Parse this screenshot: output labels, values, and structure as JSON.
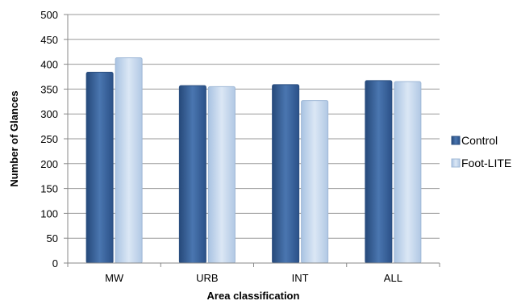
{
  "chart_data": {
    "type": "bar",
    "categories": [
      "MW",
      "URB",
      "INT",
      "ALL"
    ],
    "series": [
      {
        "name": "Control",
        "values": [
          384,
          357,
          359,
          367
        ],
        "color": "#3d67a0"
      },
      {
        "name": "Foot-LITE",
        "values": [
          413,
          355,
          327,
          365
        ],
        "color": "#bdd1ea"
      }
    ],
    "xlabel": "Area classification",
    "ylabel": "Number of Glances",
    "ylim": [
      0,
      500
    ],
    "yticks": [
      0,
      50,
      100,
      150,
      200,
      250,
      300,
      350,
      400,
      450,
      500
    ],
    "grid": true,
    "legend_position": "right"
  }
}
